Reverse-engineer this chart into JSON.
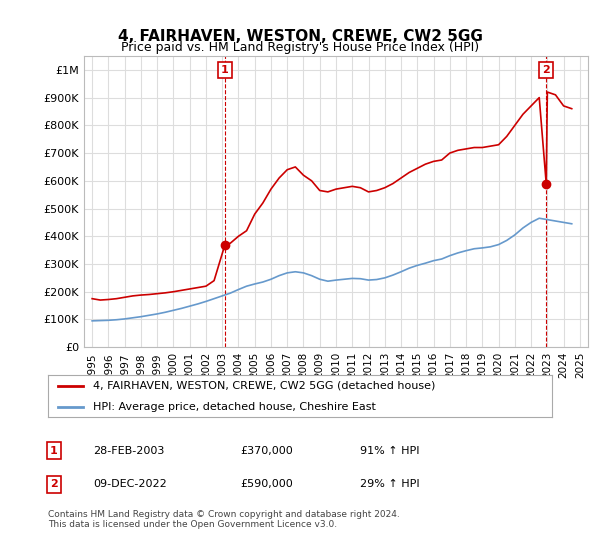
{
  "title": "4, FAIRHAVEN, WESTON, CREWE, CW2 5GG",
  "subtitle": "Price paid vs. HM Land Registry's House Price Index (HPI)",
  "ylabel_top": "£1M",
  "yticks": [
    0,
    100000,
    200000,
    300000,
    400000,
    500000,
    600000,
    700000,
    800000,
    900000,
    1000000
  ],
  "ytick_labels": [
    "£0",
    "£100K",
    "£200K",
    "£300K",
    "£400K",
    "£500K",
    "£600K",
    "£700K",
    "£800K",
    "£900K",
    "£1M"
  ],
  "xlim": [
    1994.5,
    2025.5
  ],
  "ylim": [
    0,
    1050000
  ],
  "red_line_color": "#cc0000",
  "blue_line_color": "#6699cc",
  "grid_color": "#dddddd",
  "background_color": "#ffffff",
  "legend_entries": [
    "4, FAIRHAVEN, WESTON, CREWE, CW2 5GG (detached house)",
    "HPI: Average price, detached house, Cheshire East"
  ],
  "marker1_x": 2003.17,
  "marker1_y": 370000,
  "marker2_x": 2022.93,
  "marker2_y": 590000,
  "marker1_label": "1",
  "marker2_label": "2",
  "table_data": [
    [
      "1",
      "28-FEB-2003",
      "£370,000",
      "91% ↑ HPI"
    ],
    [
      "2",
      "09-DEC-2022",
      "£590,000",
      "29% ↑ HPI"
    ]
  ],
  "footer": "Contains HM Land Registry data © Crown copyright and database right 2024.\nThis data is licensed under the Open Government Licence v3.0.",
  "red_x": [
    1995,
    1995.5,
    1996,
    1996.5,
    1997,
    1997.5,
    1998,
    1998.5,
    1999,
    1999.5,
    2000,
    2000.5,
    2001,
    2001.5,
    2002,
    2002.5,
    2003.17,
    2003.5,
    2004,
    2004.5,
    2005,
    2005.5,
    2006,
    2006.5,
    2007,
    2007.5,
    2008,
    2008.5,
    2009,
    2009.5,
    2010,
    2010.5,
    2011,
    2011.5,
    2012,
    2012.5,
    2013,
    2013.5,
    2014,
    2014.5,
    2015,
    2015.5,
    2016,
    2016.5,
    2017,
    2017.5,
    2018,
    2018.5,
    2019,
    2019.5,
    2020,
    2020.5,
    2021,
    2021.5,
    2022,
    2022.5,
    2022.93,
    2023,
    2023.5,
    2024,
    2024.5
  ],
  "red_y": [
    175000,
    170000,
    172000,
    175000,
    180000,
    185000,
    188000,
    190000,
    193000,
    196000,
    200000,
    205000,
    210000,
    215000,
    220000,
    240000,
    370000,
    375000,
    400000,
    420000,
    480000,
    520000,
    570000,
    610000,
    640000,
    650000,
    620000,
    600000,
    565000,
    560000,
    570000,
    575000,
    580000,
    575000,
    560000,
    565000,
    575000,
    590000,
    610000,
    630000,
    645000,
    660000,
    670000,
    675000,
    700000,
    710000,
    715000,
    720000,
    720000,
    725000,
    730000,
    760000,
    800000,
    840000,
    870000,
    900000,
    590000,
    920000,
    910000,
    870000,
    860000
  ],
  "blue_x": [
    1995,
    1995.5,
    1996,
    1996.5,
    1997,
    1997.5,
    1998,
    1998.5,
    1999,
    1999.5,
    2000,
    2000.5,
    2001,
    2001.5,
    2002,
    2002.5,
    2003,
    2003.5,
    2004,
    2004.5,
    2005,
    2005.5,
    2006,
    2006.5,
    2007,
    2007.5,
    2008,
    2008.5,
    2009,
    2009.5,
    2010,
    2010.5,
    2011,
    2011.5,
    2012,
    2012.5,
    2013,
    2013.5,
    2014,
    2014.5,
    2015,
    2015.5,
    2016,
    2016.5,
    2017,
    2017.5,
    2018,
    2018.5,
    2019,
    2019.5,
    2020,
    2020.5,
    2021,
    2021.5,
    2022,
    2022.5,
    2023,
    2023.5,
    2024,
    2024.5
  ],
  "blue_y": [
    95000,
    96000,
    97000,
    99000,
    102000,
    106000,
    110000,
    115000,
    120000,
    126000,
    133000,
    140000,
    148000,
    156000,
    165000,
    175000,
    185000,
    195000,
    208000,
    220000,
    228000,
    235000,
    245000,
    258000,
    268000,
    272000,
    268000,
    258000,
    245000,
    238000,
    242000,
    245000,
    248000,
    247000,
    242000,
    244000,
    250000,
    260000,
    272000,
    285000,
    295000,
    303000,
    312000,
    318000,
    330000,
    340000,
    348000,
    355000,
    358000,
    362000,
    370000,
    385000,
    405000,
    430000,
    450000,
    465000,
    460000,
    455000,
    450000,
    445000
  ]
}
